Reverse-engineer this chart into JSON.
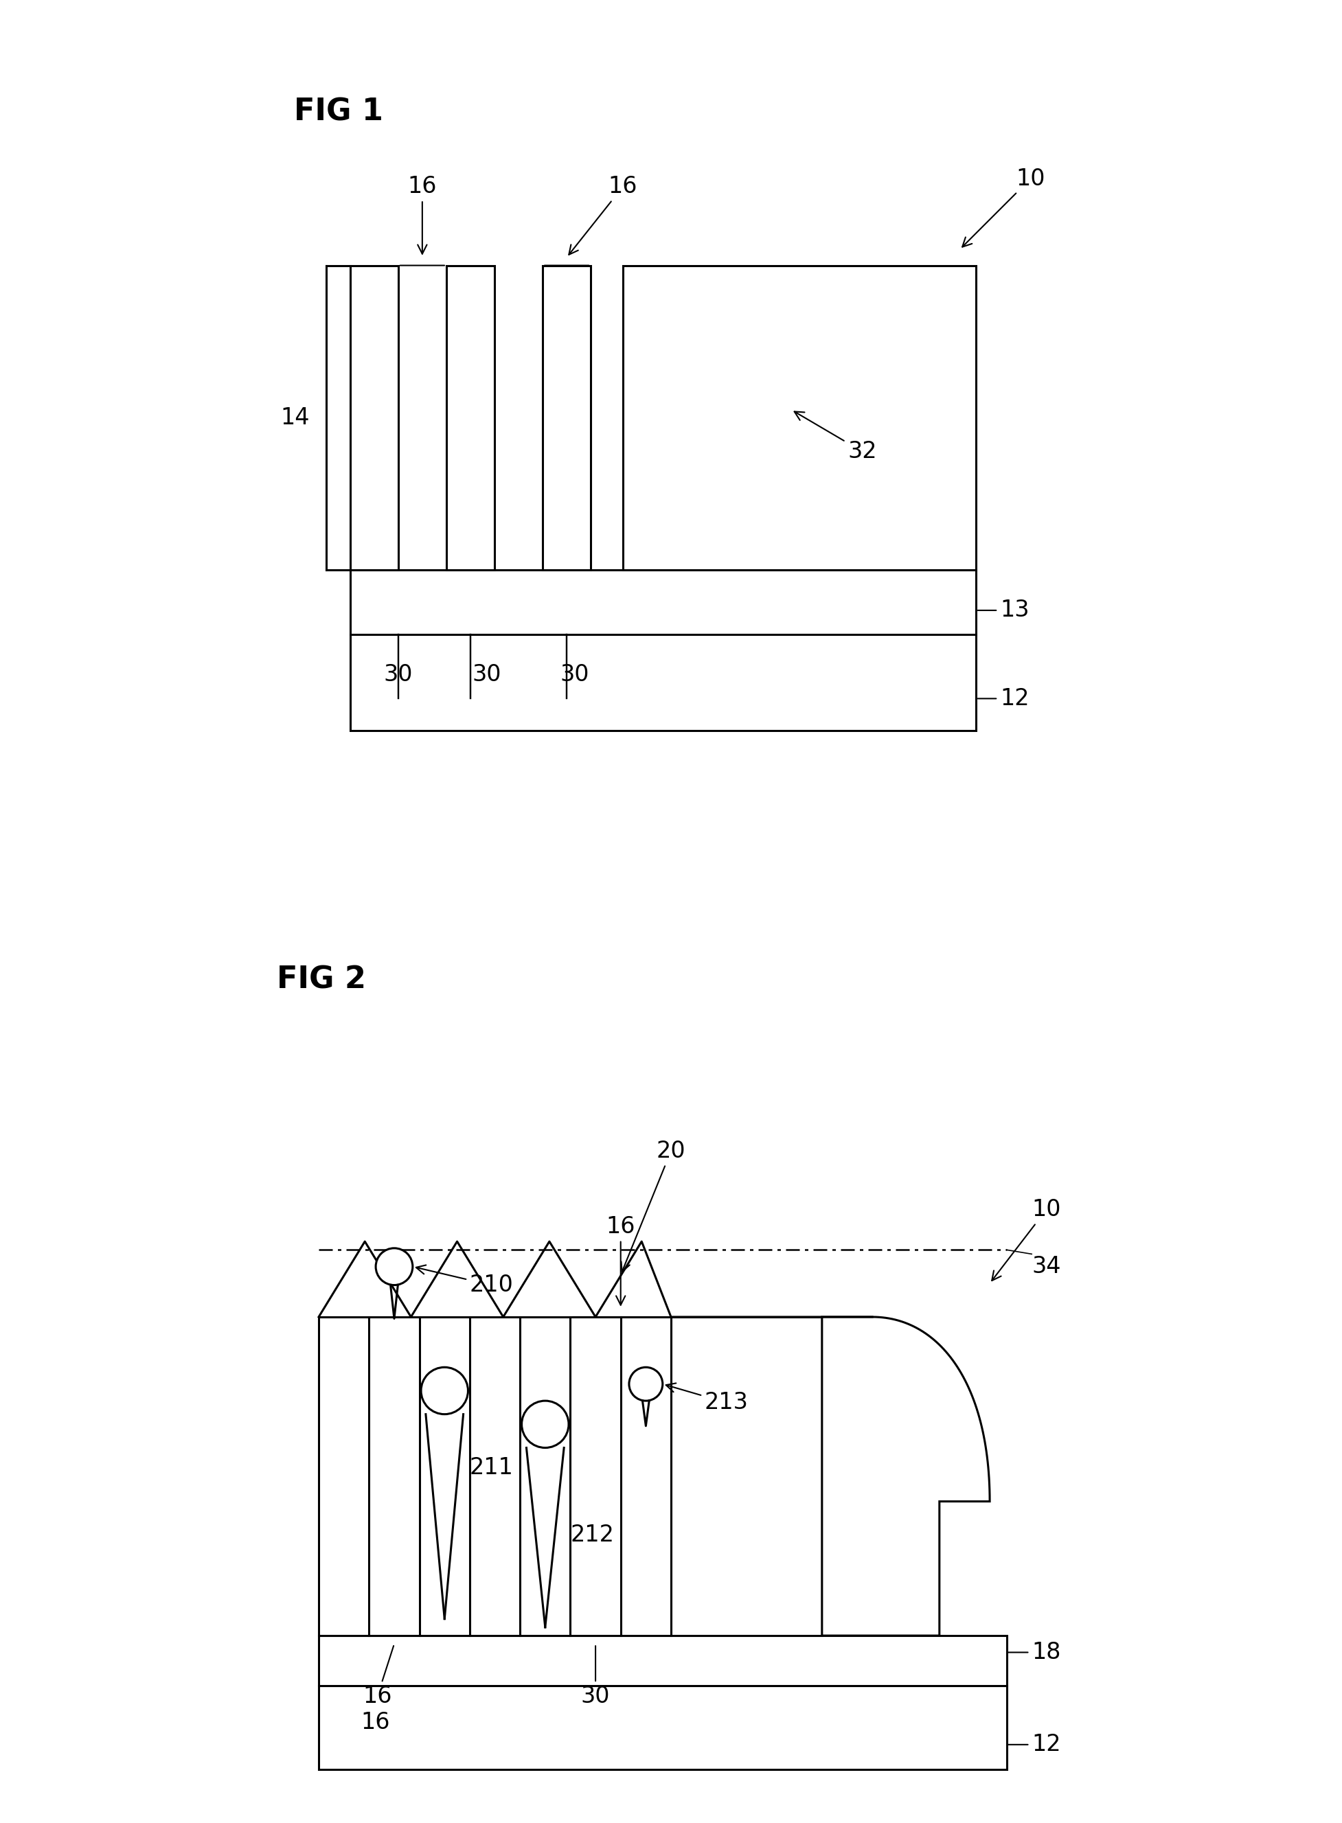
{
  "fig1_title": "FIG 1",
  "fig2_title": "FIG 2",
  "background_color": "#ffffff",
  "line_color": "#000000",
  "line_width": 2.2,
  "font_size_title": 32,
  "font_size_label": 24
}
